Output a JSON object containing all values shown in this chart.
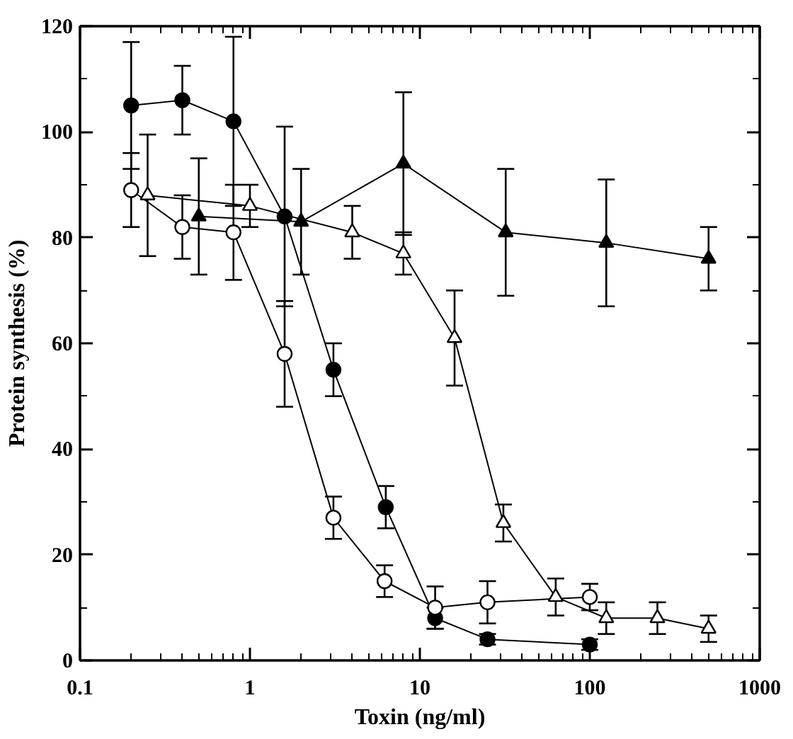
{
  "chart_data": {
    "type": "line",
    "xlabel": "Toxin (ng/ml)",
    "ylabel": "Protein synthesis (%)",
    "log": "x",
    "xlim": [
      0.1,
      1000
    ],
    "xticks": [
      0.1,
      1,
      10,
      100,
      1000
    ],
    "ylim": [
      0,
      120
    ],
    "yticks": [
      0,
      20,
      40,
      60,
      80,
      100,
      120
    ],
    "grid": false,
    "line_style": "solid",
    "series": [
      {
        "color": "#000000",
        "marker": "circle",
        "x": [
          0.2,
          0.4,
          0.8,
          1.6,
          3.1,
          6.3,
          12.3,
          25,
          100
        ],
        "values": [
          105,
          106,
          102,
          84,
          55,
          29,
          8,
          4,
          3
        ],
        "errors": [
          12,
          6.5,
          16,
          17,
          5,
          4,
          2,
          1,
          1
        ]
      },
      {
        "color": "#ffffff",
        "marker": "circle",
        "x": [
          0.2,
          0.4,
          0.8,
          1.6,
          3.1,
          6.2,
          12.3,
          25,
          100
        ],
        "values": [
          89,
          82,
          81,
          58,
          27,
          15,
          10,
          11,
          12
        ],
        "errors": [
          7,
          6,
          9,
          10,
          4,
          3,
          4,
          4,
          2.5
        ]
      },
      {
        "color": "#ffffff",
        "marker": "triangle",
        "x": [
          0.25,
          1,
          4,
          8,
          16,
          31,
          63,
          125,
          250,
          500
        ],
        "values": [
          88,
          86,
          81,
          77,
          61,
          26,
          12,
          8,
          8,
          6
        ],
        "errors": [
          11.5,
          4,
          5,
          4,
          9,
          3.5,
          3.5,
          3,
          3,
          2.5
        ]
      },
      {
        "color": "#000000",
        "marker": "triangle",
        "x": [
          0.5,
          2,
          8,
          32,
          125,
          500
        ],
        "values": [
          84,
          83,
          94,
          81,
          79,
          76
        ],
        "errors": [
          11,
          10,
          13.5,
          12,
          12,
          6
        ]
      }
    ]
  }
}
